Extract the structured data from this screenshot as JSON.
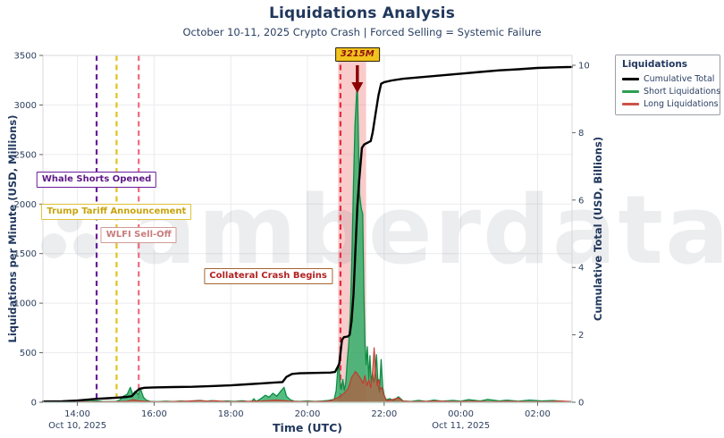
{
  "chart_data": {
    "type": "line",
    "title": "Liquidations Analysis",
    "subtitle": "October 10-11, 2025 Crypto Crash | Forced Selling = Systemic Failure",
    "xlabel": "Time (UTC)",
    "ylabel_left": "Liquidations per Minute (USD, Millions)",
    "ylabel_right": "Cumulative Total (USD, Billions)",
    "x_unit": "hours UTC from Oct 10 2025 00:00 (values > 24 are Oct 11)",
    "xlim": [
      13.1,
      26.9
    ],
    "ylim_left": [
      0,
      3500
    ],
    "ylim_right": [
      0,
      10
    ],
    "grid": true,
    "x_ticks": [
      {
        "t": 14,
        "label": "14:00",
        "date": "Oct 10, 2025"
      },
      {
        "t": 16,
        "label": "16:00"
      },
      {
        "t": 18,
        "label": "18:00"
      },
      {
        "t": 20,
        "label": "20:00"
      },
      {
        "t": 22,
        "label": "22:00"
      },
      {
        "t": 24,
        "label": "00:00",
        "date": "Oct 11, 2025"
      },
      {
        "t": 26,
        "label": "02:00"
      }
    ],
    "y_left_ticks": [
      0,
      500,
      1000,
      1500,
      2000,
      2500,
      3000,
      3500
    ],
    "y_right_ticks": [
      0,
      2,
      4,
      6,
      8,
      10
    ],
    "legend": {
      "title": "Liquidations",
      "position": "upper right, outside plot",
      "entries": [
        {
          "label": "Cumulative Total",
          "color": "#000000",
          "type": "line"
        },
        {
          "label": "Short Liquidations",
          "color": "#2e9e52",
          "type": "area"
        },
        {
          "label": "Long Liquidations",
          "color": "#cd5248",
          "type": "area"
        }
      ]
    },
    "series": {
      "cumulative_total_billions": [
        [
          13.1,
          0.02
        ],
        [
          13.6,
          0.03
        ],
        [
          14.0,
          0.05
        ],
        [
          14.3,
          0.08
        ],
        [
          14.5,
          0.1
        ],
        [
          14.8,
          0.12
        ],
        [
          15.1,
          0.14
        ],
        [
          15.3,
          0.16
        ],
        [
          15.42,
          0.18
        ],
        [
          15.5,
          0.28
        ],
        [
          15.62,
          0.4
        ],
        [
          15.75,
          0.43
        ],
        [
          16.0,
          0.44
        ],
        [
          16.5,
          0.45
        ],
        [
          17.0,
          0.46
        ],
        [
          17.5,
          0.48
        ],
        [
          18.0,
          0.5
        ],
        [
          18.4,
          0.53
        ],
        [
          18.8,
          0.56
        ],
        [
          19.1,
          0.58
        ],
        [
          19.35,
          0.6
        ],
        [
          19.45,
          0.75
        ],
        [
          19.6,
          0.84
        ],
        [
          19.8,
          0.86
        ],
        [
          20.2,
          0.87
        ],
        [
          20.6,
          0.88
        ],
        [
          20.72,
          0.9
        ],
        [
          20.79,
          1.05
        ],
        [
          20.83,
          1.15
        ],
        [
          20.87,
          1.55
        ],
        [
          20.9,
          1.85
        ],
        [
          20.95,
          1.93
        ],
        [
          21.05,
          1.95
        ],
        [
          21.1,
          2.0
        ],
        [
          21.15,
          2.4
        ],
        [
          21.2,
          3.2
        ],
        [
          21.25,
          4.5
        ],
        [
          21.3,
          5.8
        ],
        [
          21.35,
          6.6
        ],
        [
          21.42,
          7.55
        ],
        [
          21.48,
          7.65
        ],
        [
          21.65,
          7.75
        ],
        [
          21.7,
          8.0
        ],
        [
          21.78,
          8.6
        ],
        [
          21.85,
          9.1
        ],
        [
          21.92,
          9.45
        ],
        [
          22.0,
          9.5
        ],
        [
          22.2,
          9.55
        ],
        [
          22.5,
          9.6
        ],
        [
          23.0,
          9.65
        ],
        [
          23.5,
          9.7
        ],
        [
          24.0,
          9.75
        ],
        [
          24.5,
          9.8
        ],
        [
          25.0,
          9.85
        ],
        [
          25.5,
          9.88
        ],
        [
          26.0,
          9.92
        ],
        [
          26.5,
          9.94
        ],
        [
          26.9,
          9.95
        ]
      ],
      "short_liquidations_millions": [
        [
          13.1,
          4
        ],
        [
          13.4,
          6
        ],
        [
          13.7,
          3
        ],
        [
          14.0,
          8
        ],
        [
          14.2,
          5
        ],
        [
          14.35,
          10
        ],
        [
          14.5,
          14
        ],
        [
          14.65,
          8
        ],
        [
          14.8,
          6
        ],
        [
          15.0,
          6
        ],
        [
          15.1,
          20
        ],
        [
          15.2,
          60
        ],
        [
          15.3,
          80
        ],
        [
          15.38,
          150
        ],
        [
          15.45,
          70
        ],
        [
          15.5,
          110
        ],
        [
          15.58,
          80
        ],
        [
          15.65,
          130
        ],
        [
          15.72,
          50
        ],
        [
          15.8,
          20
        ],
        [
          15.9,
          8
        ],
        [
          16.1,
          5
        ],
        [
          16.3,
          10
        ],
        [
          16.5,
          6
        ],
        [
          16.7,
          12
        ],
        [
          16.9,
          7
        ],
        [
          17.1,
          14
        ],
        [
          17.2,
          18
        ],
        [
          17.35,
          9
        ],
        [
          17.5,
          15
        ],
        [
          17.7,
          7
        ],
        [
          17.9,
          12
        ],
        [
          18.1,
          8
        ],
        [
          18.3,
          14
        ],
        [
          18.45,
          8
        ],
        [
          18.55,
          10
        ],
        [
          18.6,
          35
        ],
        [
          18.65,
          12
        ],
        [
          18.7,
          15
        ],
        [
          18.8,
          40
        ],
        [
          18.9,
          70
        ],
        [
          19.0,
          50
        ],
        [
          19.1,
          90
        ],
        [
          19.2,
          60
        ],
        [
          19.3,
          110
        ],
        [
          19.39,
          150
        ],
        [
          19.45,
          60
        ],
        [
          19.55,
          25
        ],
        [
          19.65,
          10
        ],
        [
          19.8,
          8
        ],
        [
          20.0,
          12
        ],
        [
          20.2,
          7
        ],
        [
          20.4,
          12
        ],
        [
          20.55,
          18
        ],
        [
          20.65,
          25
        ],
        [
          20.7,
          30
        ],
        [
          20.75,
          120
        ],
        [
          20.79,
          330
        ],
        [
          20.82,
          360
        ],
        [
          20.85,
          200
        ],
        [
          20.88,
          130
        ],
        [
          20.92,
          230
        ],
        [
          20.96,
          120
        ],
        [
          21.0,
          200
        ],
        [
          21.04,
          420
        ],
        [
          21.08,
          600
        ],
        [
          21.12,
          900
        ],
        [
          21.16,
          1500
        ],
        [
          21.2,
          2200
        ],
        [
          21.24,
          2800
        ],
        [
          21.28,
          3100
        ],
        [
          21.3,
          3215
        ],
        [
          21.33,
          2600
        ],
        [
          21.36,
          2100
        ],
        [
          21.4,
          1960
        ],
        [
          21.44,
          1900
        ],
        [
          21.47,
          1100
        ],
        [
          21.5,
          600
        ],
        [
          21.53,
          380
        ],
        [
          21.56,
          560
        ],
        [
          21.6,
          240
        ],
        [
          21.63,
          470
        ],
        [
          21.66,
          200
        ],
        [
          21.7,
          280
        ],
        [
          21.73,
          200
        ],
        [
          21.76,
          250
        ],
        [
          21.8,
          480
        ],
        [
          21.84,
          180
        ],
        [
          21.88,
          100
        ],
        [
          21.92,
          430
        ],
        [
          21.96,
          150
        ],
        [
          22.0,
          70
        ],
        [
          22.05,
          25
        ],
        [
          22.15,
          35
        ],
        [
          22.25,
          15
        ],
        [
          22.37,
          55
        ],
        [
          22.5,
          12
        ],
        [
          22.7,
          8
        ],
        [
          22.9,
          18
        ],
        [
          23.1,
          8
        ],
        [
          23.3,
          22
        ],
        [
          23.5,
          10
        ],
        [
          23.8,
          18
        ],
        [
          24.0,
          10
        ],
        [
          24.2,
          25
        ],
        [
          24.5,
          12
        ],
        [
          24.7,
          28
        ],
        [
          25.0,
          12
        ],
        [
          25.2,
          20
        ],
        [
          25.5,
          10
        ],
        [
          25.8,
          22
        ],
        [
          26.1,
          12
        ],
        [
          26.4,
          16
        ],
        [
          26.7,
          8
        ],
        [
          26.9,
          5
        ]
      ],
      "long_liquidations_millions": [
        [
          13.1,
          2
        ],
        [
          13.6,
          3
        ],
        [
          14.0,
          3
        ],
        [
          14.5,
          4
        ],
        [
          15.0,
          5
        ],
        [
          15.3,
          10
        ],
        [
          15.45,
          25
        ],
        [
          15.6,
          15
        ],
        [
          15.8,
          8
        ],
        [
          16.0,
          4
        ],
        [
          16.4,
          6
        ],
        [
          16.8,
          10
        ],
        [
          17.0,
          14
        ],
        [
          17.2,
          18
        ],
        [
          17.4,
          10
        ],
        [
          17.6,
          15
        ],
        [
          17.8,
          8
        ],
        [
          18.0,
          5
        ],
        [
          18.4,
          8
        ],
        [
          18.8,
          12
        ],
        [
          19.0,
          18
        ],
        [
          19.2,
          22
        ],
        [
          19.39,
          16
        ],
        [
          19.55,
          10
        ],
        [
          19.8,
          6
        ],
        [
          20.2,
          6
        ],
        [
          20.5,
          10
        ],
        [
          20.65,
          20
        ],
        [
          20.75,
          40
        ],
        [
          20.85,
          60
        ],
        [
          20.95,
          90
        ],
        [
          21.05,
          130
        ],
        [
          21.1,
          180
        ],
        [
          21.15,
          250
        ],
        [
          21.2,
          280
        ],
        [
          21.25,
          310
        ],
        [
          21.3,
          290
        ],
        [
          21.35,
          260
        ],
        [
          21.4,
          230
        ],
        [
          21.45,
          190
        ],
        [
          21.5,
          270
        ],
        [
          21.55,
          170
        ],
        [
          21.6,
          230
        ],
        [
          21.65,
          150
        ],
        [
          21.7,
          320
        ],
        [
          21.74,
          550
        ],
        [
          21.78,
          280
        ],
        [
          21.82,
          170
        ],
        [
          21.86,
          230
        ],
        [
          21.9,
          130
        ],
        [
          21.94,
          150
        ],
        [
          21.98,
          90
        ],
        [
          22.03,
          40
        ],
        [
          22.08,
          15
        ],
        [
          22.2,
          25
        ],
        [
          22.37,
          45
        ],
        [
          22.5,
          10
        ],
        [
          22.8,
          6
        ],
        [
          23.0,
          8
        ],
        [
          23.42,
          12
        ],
        [
          23.8,
          6
        ],
        [
          24.35,
          10
        ],
        [
          24.8,
          5
        ],
        [
          25.3,
          9
        ],
        [
          25.8,
          5
        ],
        [
          26.3,
          6
        ],
        [
          26.6,
          12
        ],
        [
          26.85,
          7
        ]
      ]
    },
    "events": [
      {
        "label": "Whale Shorts Opened",
        "t": 14.5,
        "line_color": "#6a1b9a",
        "text_color": "#5e1787",
        "border_color": "#6a1b9a",
        "style": "dashed"
      },
      {
        "label": "Trump Tariff Announcement",
        "t": 15.02,
        "line_color": "#e3c219",
        "text_color": "#c9a40d",
        "border_color": "#e0c23a",
        "style": "dashed"
      },
      {
        "label": "WLFI Sell-Off",
        "t": 15.6,
        "line_color": "#ee6b81",
        "text_color": "#c87c7c",
        "border_color": "#cf9a96",
        "style": "dashed"
      },
      {
        "label": "Collateral Crash Begins",
        "t": 20.86,
        "line_color": "#ea2c3e",
        "text_color": "#b22222",
        "border_color": "#a8652f",
        "style": "dashed",
        "band": [
          20.8,
          21.53
        ],
        "band_color": "rgba(238,92,92,0.32)"
      }
    ],
    "annotation": {
      "label": "3215M",
      "value_millions": 3215,
      "t": 21.3,
      "box_color": "#f2c31d",
      "text_color": "#8c1010",
      "arrow_color": "#8b0000"
    },
    "watermark": {
      "text": "amberdata",
      "logo": "amberdata-logo"
    }
  }
}
